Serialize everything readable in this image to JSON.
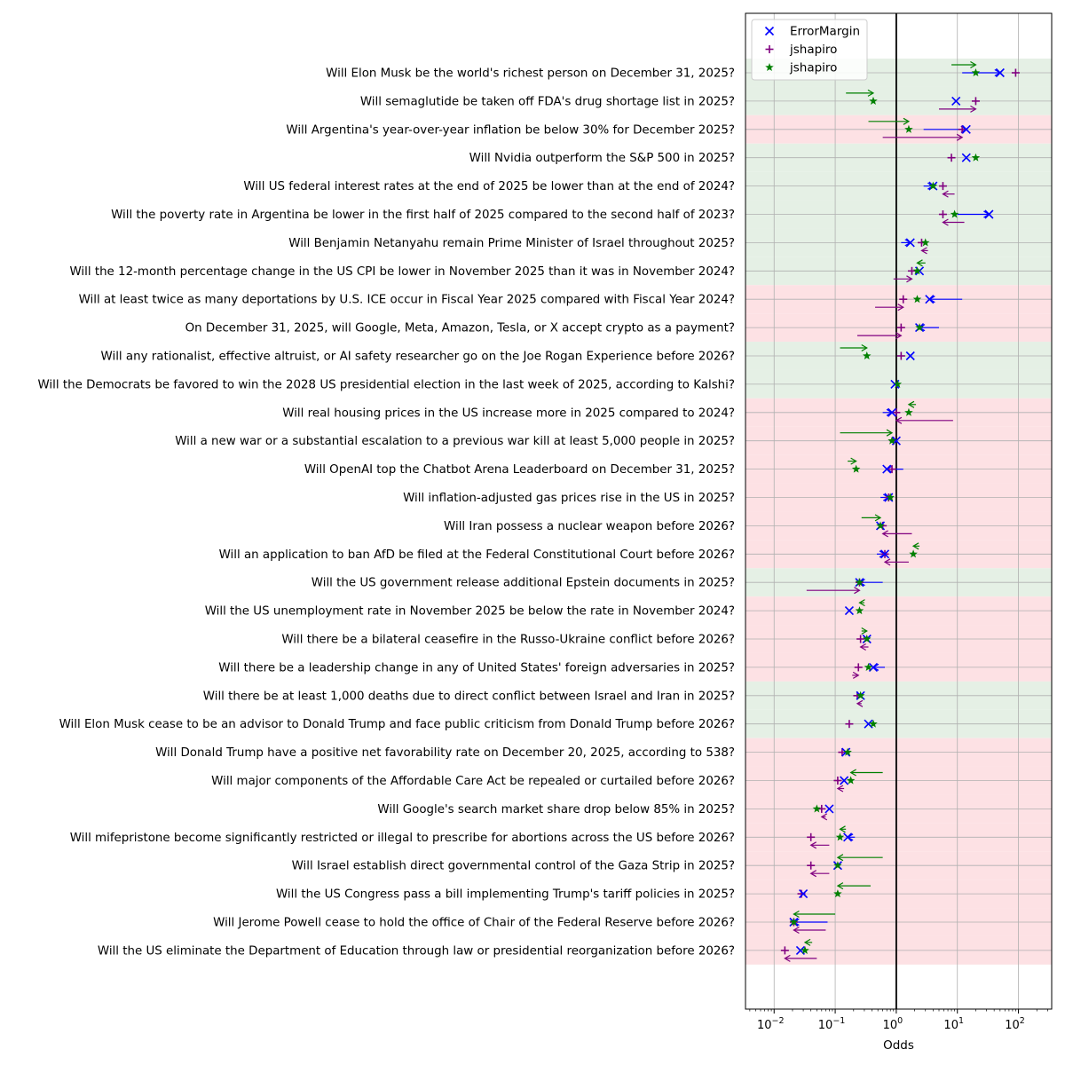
{
  "chart_data": {
    "type": "scatter",
    "title": "",
    "xlabel": "Odds",
    "ylabel": "",
    "xscale": "log",
    "xlim": [
      0.0034,
      350
    ],
    "xticks": [
      {
        "value": 0.01,
        "base": "10",
        "exp": "−2"
      },
      {
        "value": 0.1,
        "base": "10",
        "exp": "−1"
      },
      {
        "value": 1,
        "base": "10",
        "exp": "0"
      },
      {
        "value": 10,
        "base": "10",
        "exp": "1"
      },
      {
        "value": 100,
        "base": "10",
        "exp": "2"
      }
    ],
    "reference_line": 1,
    "grid": true,
    "legend_placement": "top-left",
    "colors": {
      "positive_band": "#e5f0e5",
      "negative_band": "#fde1e4",
      "series_1": "#0000ff",
      "series_2": "#800080",
      "series_3": "#008000",
      "grid": "#b0b0b0"
    },
    "legend": [
      {
        "name": "ErrorMargin",
        "marker": "x",
        "color": "#0000ff"
      },
      {
        "name": "jshapiro",
        "marker": "plus",
        "color": "#800080"
      },
      {
        "name": "jshapiro",
        "marker": "star",
        "color": "#008000"
      }
    ],
    "questions": [
      {
        "label": "Will Elon Musk be the world's richest person on December 31, 2025?",
        "outcome": "yes",
        "blue": 50,
        "blue_from": 12,
        "purple": 90,
        "purple_from": null,
        "green": 20,
        "green_from": 8
      },
      {
        "label": "Will semaglutide be taken off FDA's drug shortage list in 2025?",
        "outcome": "yes",
        "blue": 9.5,
        "blue_from": null,
        "purple": 20,
        "purple_from": 5,
        "green": 0.42,
        "green_from": 0.15
      },
      {
        "label": "Will Argentina's year-over-year inflation be below 30% for December 2025?",
        "outcome": "no",
        "blue": 14,
        "blue_from": 2.8,
        "purple": 12,
        "purple_from": 0.6,
        "green": 1.6,
        "green_from": 0.35
      },
      {
        "label": "Will Nvidia outperform the S&P 500 in 2025?",
        "outcome": "yes",
        "blue": 14,
        "blue_from": null,
        "purple": 8,
        "purple_from": null,
        "green": 20,
        "green_from": null
      },
      {
        "label": "Will US federal interest rates at the end of 2025 be lower than at the end of 2024?",
        "outcome": "yes",
        "blue": 4,
        "blue_from": 2.8,
        "purple": 5.8,
        "purple_from": 9,
        "green": 4,
        "green_from": null
      },
      {
        "label": "Will the poverty rate in Argentina be lower in the first half of 2025 compared to the second half of 2023?",
        "outcome": "yes",
        "blue": 33,
        "blue_from": 10,
        "purple": 5.8,
        "purple_from": 13,
        "green": 9,
        "green_from": null
      },
      {
        "label": "Will Benjamin Netanyahu remain Prime Minister of Israel throughout 2025?",
        "outcome": "yes",
        "blue": 1.7,
        "blue_from": 1.2,
        "purple": 2.6,
        "purple_from": 3.3,
        "green": 3,
        "green_from": null
      },
      {
        "label": "Will the 12-month percentage change in the US CPI be lower in November 2025 than it was in November 2024?",
        "outcome": "yes",
        "blue": 2.4,
        "blue_from": null,
        "purple": 1.8,
        "purple_from": 0.9,
        "green": 2.2,
        "green_from": 3
      },
      {
        "label": "Will at least twice as many deportations by U.S. ICE occur in Fiscal Year 2025 compared with Fiscal Year 2024?",
        "outcome": "no",
        "blue": 3.5,
        "blue_from": 12,
        "purple": 1.3,
        "purple_from": 0.45,
        "green": 2.2,
        "green_from": null
      },
      {
        "label": "On December 31, 2025, will Google, Meta, Amazon, Tesla, or X accept crypto as a payment?",
        "outcome": "no",
        "blue": 2.4,
        "blue_from": 5,
        "purple": 1.2,
        "purple_from": 0.23,
        "green": 2.4,
        "green_from": null
      },
      {
        "label": "Will any rationalist, effective altruist, or AI safety researcher go on the Joe Rogan Experience before 2026?",
        "outcome": "yes",
        "blue": 1.7,
        "blue_from": null,
        "purple": 1.2,
        "purple_from": null,
        "green": 0.33,
        "green_from": 0.12
      },
      {
        "label": "Will the Democrats be favored to win the 2028 US presidential election in the last week of 2025, according to Kalshi?",
        "outcome": "yes",
        "blue": 0.95,
        "blue_from": null,
        "purple": null,
        "purple_from": null,
        "green": 1.05,
        "green_from": null
      },
      {
        "label": "Will real housing prices in the US increase more in 2025 compared to 2024?",
        "outcome": "no",
        "blue": 0.85,
        "blue_from": 0.6,
        "purple": 1,
        "purple_from": 8.5,
        "green": 1.6,
        "green_from": 2.1
      },
      {
        "label": "Will a new war or a substantial escalation to a previous war kill at least 5,000 people in 2025?",
        "outcome": "no",
        "blue": 1,
        "blue_from": null,
        "purple": 0.9,
        "purple_from": null,
        "green": 0.85,
        "green_from": 0.12
      },
      {
        "label": "Will OpenAI top the Chatbot Arena Leaderboard on December 31, 2025?",
        "outcome": "no",
        "blue": 0.7,
        "blue_from": 1.3,
        "purple": 0.85,
        "purple_from": null,
        "green": 0.22,
        "green_from": 0.16
      },
      {
        "label": "Will inflation-adjusted gas prices rise in the US in 2025?",
        "outcome": "no",
        "blue": 0.75,
        "blue_from": 0.55,
        "purple": 0.75,
        "purple_from": null,
        "green": 0.8,
        "green_from": null
      },
      {
        "label": "Will Iran possess a nuclear weapon before 2026?",
        "outcome": "no",
        "blue": 0.55,
        "blue_from": null,
        "purple": 0.6,
        "purple_from": 1.8,
        "green": 0.55,
        "green_from": 0.27
      },
      {
        "label": "Will an application to ban AfD be filed at the Federal Constitutional Court before 2026?",
        "outcome": "no",
        "blue": 0.65,
        "blue_from": 0.48,
        "purple": 0.65,
        "purple_from": 1.6,
        "green": 1.9,
        "green_from": 2.4
      },
      {
        "label": "Will the US government release additional Epstein documents in 2025?",
        "outcome": "yes",
        "blue": 0.25,
        "blue_from": 0.6,
        "purple": 0.25,
        "purple_from": 0.034,
        "green": 0.25,
        "green_from": null
      },
      {
        "label": "Will the US unemployment rate in November 2025 be below the rate in November 2024?",
        "outcome": "no",
        "blue": 0.17,
        "blue_from": null,
        "purple": null,
        "purple_from": null,
        "green": 0.25,
        "green_from": 0.3
      },
      {
        "label": "Will there be a bilateral ceasefire in the Russo-Ukraine conflict before 2026?",
        "outcome": "no",
        "blue": 0.33,
        "blue_from": null,
        "purple": 0.26,
        "purple_from": 0.35,
        "green": 0.33,
        "green_from": 0.27
      },
      {
        "label": "Will there be a leadership change in any of United States' foreign adversaries in 2025?",
        "outcome": "no",
        "blue": 0.42,
        "blue_from": 0.65,
        "purple": 0.24,
        "purple_from": 0.19,
        "green": 0.35,
        "green_from": null
      },
      {
        "label": "Will there be at least 1,000 deaths due to direct conflict between Israel and Iran in 2025?",
        "outcome": "yes",
        "blue": 0.26,
        "blue_from": null,
        "purple": 0.23,
        "purple_from": 0.27,
        "green": 0.26,
        "green_from": null
      },
      {
        "label": "Will Elon Musk cease to be an advisor to Donald Trump and face public criticism from Donald Trump before 2026?",
        "outcome": "yes",
        "blue": 0.35,
        "blue_from": null,
        "purple": 0.17,
        "purple_from": null,
        "green": 0.42,
        "green_from": null
      },
      {
        "label": "Will Donald Trump have a positive net favorability rate on December 20, 2025, according to 538?",
        "outcome": "no",
        "blue": 0.15,
        "blue_from": null,
        "purple": 0.13,
        "purple_from": null,
        "green": 0.16,
        "green_from": null
      },
      {
        "label": "Will major components of the Affordable Care Act be repealed or curtailed before 2026?",
        "outcome": "no",
        "blue": 0.14,
        "blue_from": null,
        "purple": 0.11,
        "purple_from": 0.14,
        "green": 0.18,
        "green_from": 0.6
      },
      {
        "label": "Will Google's search market share drop below 85% in 2025?",
        "outcome": "no",
        "blue": 0.08,
        "blue_from": null,
        "purple": 0.06,
        "purple_from": 0.07,
        "green": 0.05,
        "green_from": null
      },
      {
        "label": "Will mifepristone become significantly restricted or illegal to prescribe for abortions across the US before 2026?",
        "outcome": "no",
        "blue": 0.16,
        "blue_from": 0.21,
        "purple": 0.04,
        "purple_from": 0.08,
        "green": 0.12,
        "green_from": 0.15
      },
      {
        "label": "Will Israel establish direct governmental control of the Gaza Strip in 2025?",
        "outcome": "no",
        "blue": 0.11,
        "blue_from": null,
        "purple": 0.04,
        "purple_from": 0.08,
        "green": 0.11,
        "green_from": 0.6
      },
      {
        "label": "Will the US Congress pass a bill implementing Trump's tariff policies in 2025?",
        "outcome": "no",
        "blue": 0.03,
        "blue_from": null,
        "purple": 0.028,
        "purple_from": null,
        "green": 0.11,
        "green_from": 0.38
      },
      {
        "label": "Will Jerome Powell cease to hold the office of Chair of the Federal Reserve before 2026?",
        "outcome": "no",
        "blue": 0.021,
        "blue_from": 0.075,
        "purple": 0.021,
        "purple_from": 0.07,
        "green": 0.021,
        "green_from": 0.1
      },
      {
        "label": "Will the US eliminate the Department of Education through law or presidential reorganization before 2026?",
        "outcome": "no",
        "blue": 0.027,
        "blue_from": null,
        "purple": 0.015,
        "purple_from": 0.05,
        "green": 0.032,
        "green_from": 0.042
      }
    ]
  }
}
